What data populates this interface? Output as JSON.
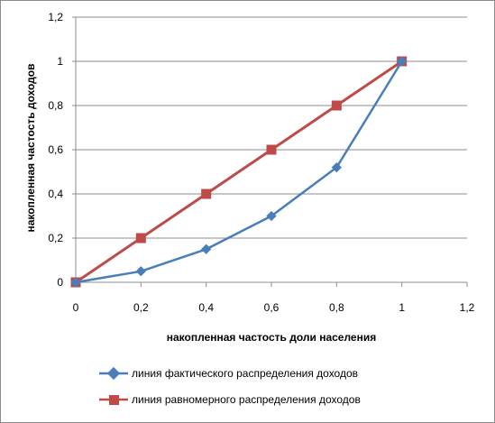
{
  "chart_data": {
    "type": "line",
    "xlabel": "накопленная частость доли населения",
    "ylabel": "накопленная частость доходов",
    "xlim": [
      0,
      1.2
    ],
    "ylim": [
      0,
      1.2
    ],
    "x_ticks": [
      "0",
      "0,2",
      "0,4",
      "0,6",
      "0,8",
      "1",
      "1,2"
    ],
    "y_ticks": [
      "0",
      "0,2",
      "0,4",
      "0,6",
      "0,8",
      "1",
      "1,2"
    ],
    "grid": "horizontal",
    "legend_position": "bottom",
    "series": [
      {
        "name": "линия фактического распределения доходов",
        "color": "#4a7ebb",
        "marker": "diamond",
        "x": [
          0,
          0.2,
          0.4,
          0.6,
          0.8,
          1
        ],
        "y": [
          0,
          0.05,
          0.15,
          0.3,
          0.52,
          1
        ]
      },
      {
        "name": "линия равномерного распределения доходов",
        "color": "#be4b48",
        "marker": "square",
        "x": [
          0,
          0.2,
          0.4,
          0.6,
          0.8,
          1
        ],
        "y": [
          0,
          0.2,
          0.4,
          0.6,
          0.8,
          1
        ]
      }
    ]
  }
}
